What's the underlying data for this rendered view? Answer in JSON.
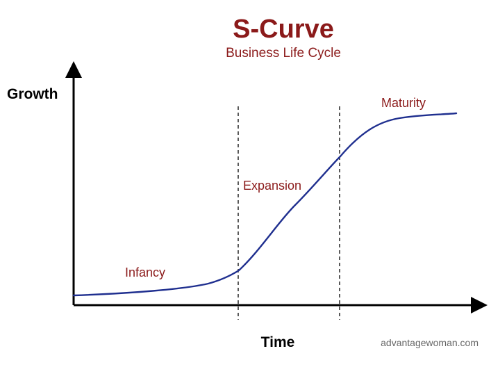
{
  "title": "S-Curve",
  "subtitle": "Business Life Cycle",
  "y_axis_label": "Growth",
  "x_axis_label": "Time",
  "phases": [
    {
      "id": "infancy",
      "label": "Infancy"
    },
    {
      "id": "expansion",
      "label": "Expansion"
    },
    {
      "id": "maturity",
      "label": "Maturity"
    }
  ],
  "credit": "advantagewoman.com",
  "colors": {
    "title": "#8b1a1a",
    "phase_label": "#8b1a1a",
    "curve": "#1f2f8f",
    "axis": "#000000",
    "divider": "#000000",
    "credit": "#666666"
  }
}
